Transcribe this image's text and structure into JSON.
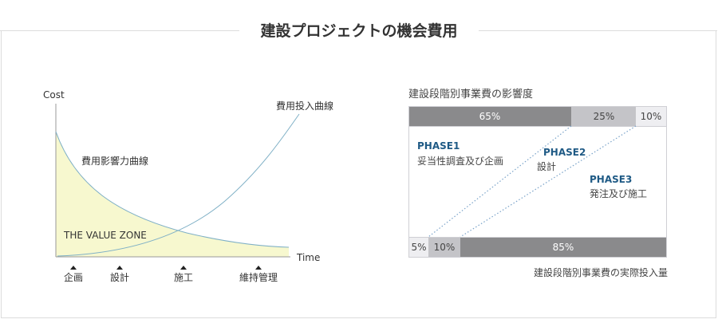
{
  "page_title": "建設プロジェクトの機会費用",
  "left_chart": {
    "ylabel": "Cost",
    "xlabel": "Time",
    "curve_investment_label": "費用投入曲線",
    "curve_influence_label": "費用影響力曲線",
    "zone_label": "THE VALUE ZONE",
    "stages": [
      "企画",
      "設計",
      "施工",
      "維持管理"
    ]
  },
  "right_chart": {
    "title": "建設段階別事業費の影響度",
    "caption": "建設段階別事業費の実際投入量",
    "top_bar": [
      {
        "label": "65%",
        "value": 65
      },
      {
        "label": "25%",
        "value": 25
      },
      {
        "label": "10%",
        "value": 10
      }
    ],
    "bottom_bar": [
      {
        "label": "5%",
        "value": 5
      },
      {
        "label": "10%",
        "value": 10
      },
      {
        "label": "85%",
        "value": 85
      }
    ],
    "phases": [
      {
        "name": "PHASE1",
        "desc": "妥当性調査及び企画"
      },
      {
        "name": "PHASE2",
        "desc": "設計"
      },
      {
        "name": "PHASE3",
        "desc": "発注及び施工"
      }
    ]
  },
  "colors": {
    "dark_segment": "#8a8a8c",
    "mid_segment": "#c4c4c8",
    "light_segment": "#eeeef1",
    "phase_text": "#1f5a85",
    "curve": "#7fb0c6",
    "value_zone_fill": "#f7f8cf",
    "dotted_line": "#7aa3c9"
  }
}
